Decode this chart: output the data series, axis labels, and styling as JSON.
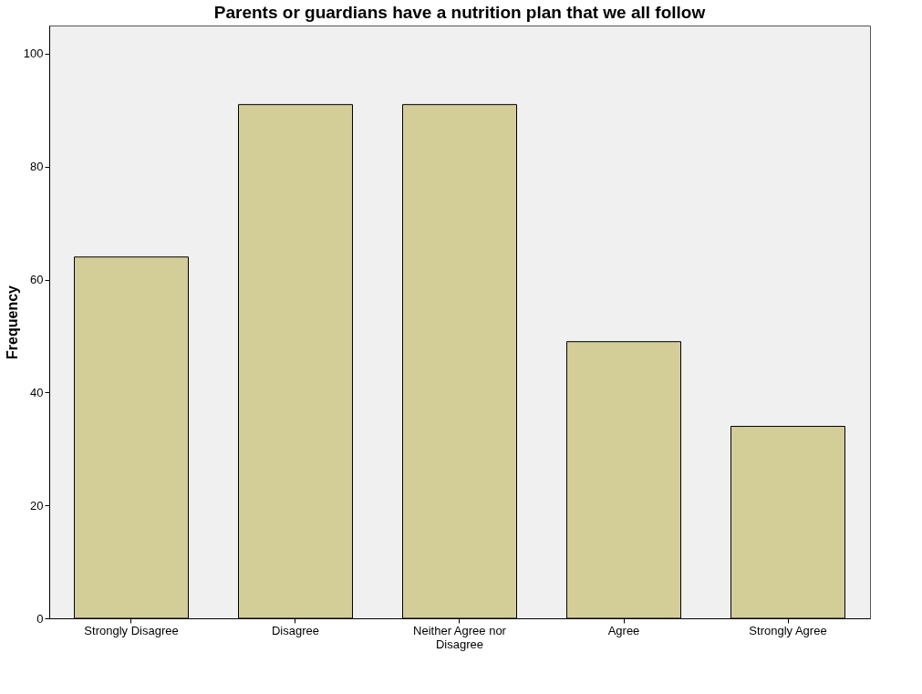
{
  "chart_data": {
    "type": "bar",
    "title": "Parents or guardians have a nutrition plan that we all follow",
    "ylabel": "Frequency",
    "categories": [
      "Strongly Disagree",
      "Disagree",
      "Neither Agree nor Disagree",
      "Agree",
      "Strongly Agree"
    ],
    "values": [
      64,
      91,
      91,
      49,
      34
    ],
    "color": "#d3ce97",
    "ylim": [
      0,
      105
    ],
    "yticks": [
      0,
      20,
      40,
      60,
      80,
      100
    ],
    "grid": false
  }
}
